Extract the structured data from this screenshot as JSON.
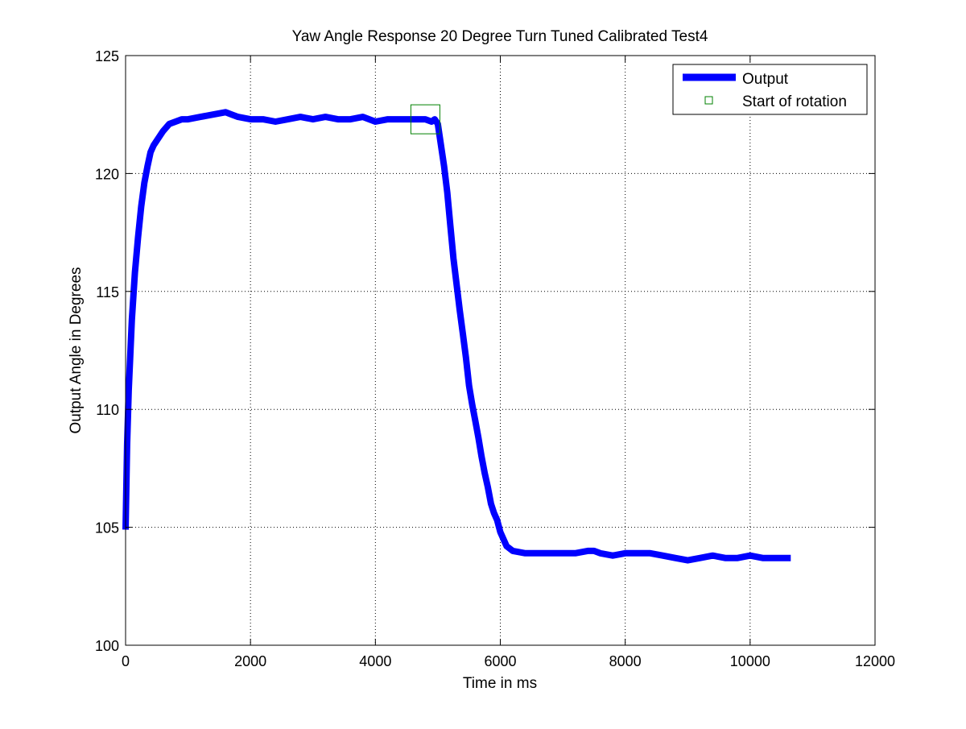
{
  "chart_data": {
    "type": "line",
    "title": "Yaw Angle Response 20 Degree Turn Tuned Calibrated Test4",
    "xlabel": "Time in ms",
    "ylabel": "Output Angle in Degrees",
    "xlim": [
      0,
      12000
    ],
    "ylim": [
      100,
      125
    ],
    "xticks": [
      0,
      2000,
      4000,
      6000,
      8000,
      10000,
      12000
    ],
    "yticks": [
      100,
      105,
      110,
      115,
      120,
      125
    ],
    "grid": true,
    "legend_position": "top-right",
    "series": [
      {
        "name": "Output",
        "color": "#0000ff",
        "style": "line",
        "x": [
          0,
          25,
          50,
          100,
          150,
          200,
          250,
          300,
          350,
          400,
          450,
          500,
          600,
          700,
          800,
          900,
          1000,
          1200,
          1400,
          1600,
          1700,
          1800,
          2000,
          2200,
          2400,
          2600,
          2800,
          3000,
          3200,
          3400,
          3600,
          3800,
          4000,
          4200,
          4400,
          4600,
          4800,
          4900,
          4950,
          5000,
          5050,
          5100,
          5150,
          5200,
          5250,
          5300,
          5350,
          5400,
          5450,
          5500,
          5550,
          5600,
          5650,
          5700,
          5750,
          5800,
          5850,
          5900,
          5950,
          6000,
          6100,
          6200,
          6400,
          6600,
          6800,
          7000,
          7200,
          7400,
          7500,
          7600,
          7800,
          8000,
          8200,
          8400,
          8600,
          8800,
          9000,
          9200,
          9400,
          9600,
          9800,
          10000,
          10200,
          10400,
          10650
        ],
        "y": [
          104.9,
          108.5,
          110.8,
          113.8,
          115.8,
          117.3,
          118.6,
          119.6,
          120.3,
          120.9,
          121.2,
          121.4,
          121.8,
          122.1,
          122.2,
          122.3,
          122.3,
          122.4,
          122.5,
          122.6,
          122.5,
          122.4,
          122.3,
          122.3,
          122.2,
          122.3,
          122.4,
          122.3,
          122.4,
          122.3,
          122.3,
          122.4,
          122.2,
          122.3,
          122.3,
          122.3,
          122.3,
          122.2,
          122.3,
          122.1,
          121.2,
          120.3,
          119.2,
          117.8,
          116.4,
          115.3,
          114.2,
          113.2,
          112.2,
          111.0,
          110.2,
          109.5,
          108.8,
          108.0,
          107.3,
          106.7,
          106.0,
          105.6,
          105.3,
          104.8,
          104.2,
          104.0,
          103.9,
          103.9,
          103.9,
          103.9,
          103.9,
          104.0,
          104.0,
          103.9,
          103.8,
          103.9,
          103.9,
          103.9,
          103.8,
          103.7,
          103.6,
          103.7,
          103.8,
          103.7,
          103.7,
          103.8,
          103.7,
          103.7,
          103.7
        ]
      },
      {
        "name": "Start of rotation",
        "color": "#008000",
        "style": "marker-square",
        "x": [
          4800
        ],
        "y": [
          122.3
        ]
      }
    ]
  }
}
